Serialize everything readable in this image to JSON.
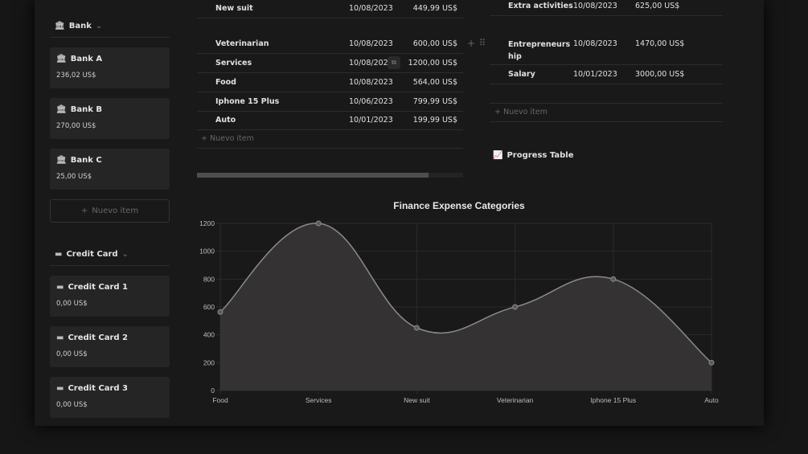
{
  "bank": {
    "title": "Bank",
    "items": [
      {
        "name": "Bank A",
        "value": "236,02 US$"
      },
      {
        "name": "Bank B",
        "value": "270,00 US$"
      },
      {
        "name": "Bank C",
        "value": "25,00 US$"
      }
    ],
    "new_item": "Nuevo item"
  },
  "credit": {
    "title": "Credit Card",
    "items": [
      {
        "name": "Credit Card 1",
        "value": "0,00 US$"
      },
      {
        "name": "Credit Card 2",
        "value": "0,00 US$"
      },
      {
        "name": "Credit Card 3",
        "value": "0,00 US$"
      }
    ]
  },
  "expenses": {
    "rows": [
      {
        "name": "New suit",
        "date": "10/08/2023",
        "amount": "449,99 US$"
      },
      {
        "name": "Veterinarian",
        "date": "10/08/2023",
        "amount": "600,00 US$"
      },
      {
        "name": "Services",
        "date": "10/08/202",
        "amount": "1200,00 US$"
      },
      {
        "name": "Food",
        "date": "10/08/2023",
        "amount": "564,00 US$"
      },
      {
        "name": "Iphone 15 Plus",
        "date": "10/06/2023",
        "amount": "799,99 US$"
      },
      {
        "name": "Auto",
        "date": "10/01/2023",
        "amount": "199,99 US$"
      }
    ],
    "new_item": "Nuevo item",
    "scroll_progress": 0.87
  },
  "income": {
    "rows": [
      {
        "name": "Extra activities",
        "date": "10/08/2023",
        "amount": "625,00 US$"
      },
      {
        "name": "Entrepreneurs",
        "name2": "hip",
        "date": "10/08/2023",
        "amount": "1470,00 US$"
      },
      {
        "name": "Salary",
        "date": "10/01/2023",
        "amount": "3000,00 US$"
      }
    ],
    "new_item": "Nuevo item"
  },
  "progress_table": {
    "title": "Progress Table"
  },
  "chart_data": {
    "type": "area",
    "title": "Finance Expense Categories",
    "categories": [
      "Food",
      "Services",
      "New suit",
      "Veterinarian",
      "Iphone 15 Plus",
      "Auto"
    ],
    "values": [
      564,
      1200,
      449.99,
      600,
      799.99,
      199.99
    ],
    "ylim": [
      0,
      1200
    ],
    "yticks": [
      "0",
      "200",
      "400",
      "600",
      "800",
      "1000",
      "1200"
    ],
    "grid": true,
    "line_color": "#8a8a8a",
    "fill_color": "#343233"
  }
}
